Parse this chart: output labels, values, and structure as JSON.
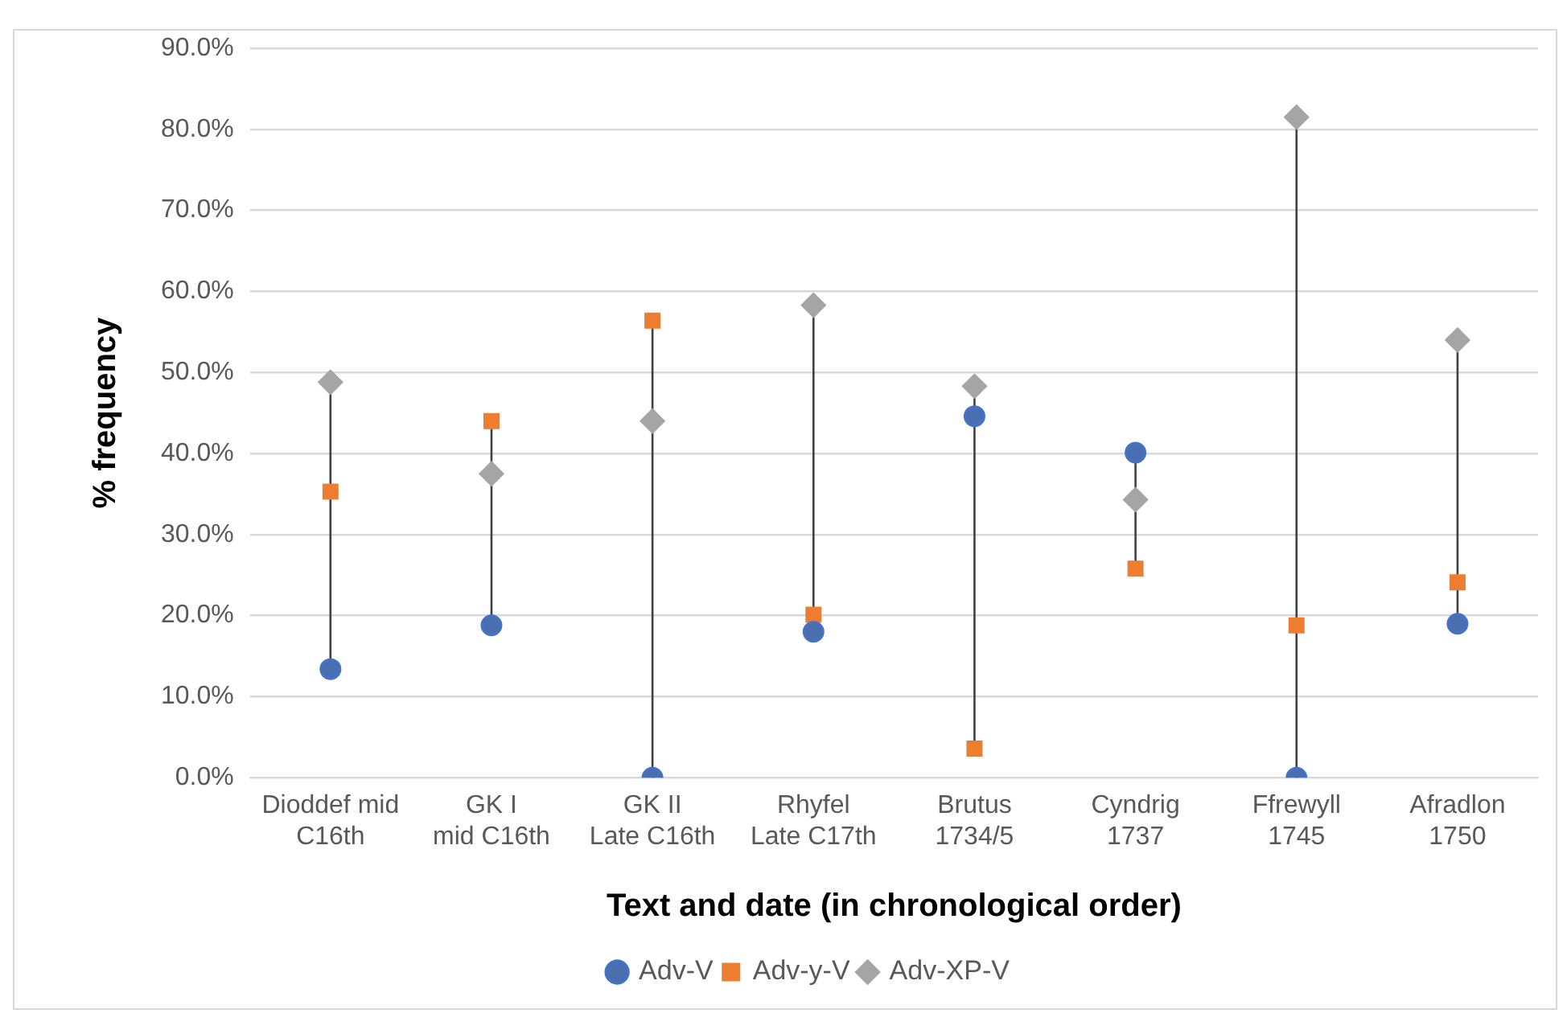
{
  "chart_data": {
    "type": "scatter",
    "xlabel": "Text and date (in chronological order)",
    "ylabel": "% frequency",
    "categories": [
      "Dioddef mid\nC16th",
      "GK I\nmid C16th",
      "GK II\nLate C16th",
      "Rhyfel\nLate C17th",
      "Brutus\n1734/5",
      "Cyndrig\n1737",
      "Ffrewyll\n1745",
      "Afradlon\n1750"
    ],
    "series": [
      {
        "name": "Adv-V",
        "color": "#4a6fb0",
        "marker": "circle",
        "values": [
          13.4,
          18.8,
          0,
          18.0,
          44.6,
          40.1,
          0,
          19.0
        ]
      },
      {
        "name": "Adv-y-V",
        "color": "#ed7d31",
        "marker": "square",
        "values": [
          35.3,
          44.0,
          56.4,
          20.1,
          3.6,
          25.8,
          18.8,
          24.1
        ]
      },
      {
        "name": "Adv-XP-V",
        "color": "#a5a5a5",
        "marker": "diamond",
        "values": [
          48.8,
          37.5,
          44.0,
          58.3,
          48.3,
          34.3,
          81.5,
          54.0
        ]
      }
    ],
    "ylim": [
      0,
      90
    ],
    "yticks": [
      {
        "value": 0,
        "label": "0.0%"
      },
      {
        "value": 10,
        "label": "10.0%"
      },
      {
        "value": 20,
        "label": "20.0%"
      },
      {
        "value": 30,
        "label": "30.0%"
      },
      {
        "value": 40,
        "label": "40.0%"
      },
      {
        "value": 50,
        "label": "50.0%"
      },
      {
        "value": 60,
        "label": "60.0%"
      },
      {
        "value": 70,
        "label": "70.0%"
      },
      {
        "value": 80,
        "label": "80.0%"
      },
      {
        "value": 90,
        "label": "90.0%"
      }
    ],
    "grid": "y",
    "legend": "bottom"
  }
}
